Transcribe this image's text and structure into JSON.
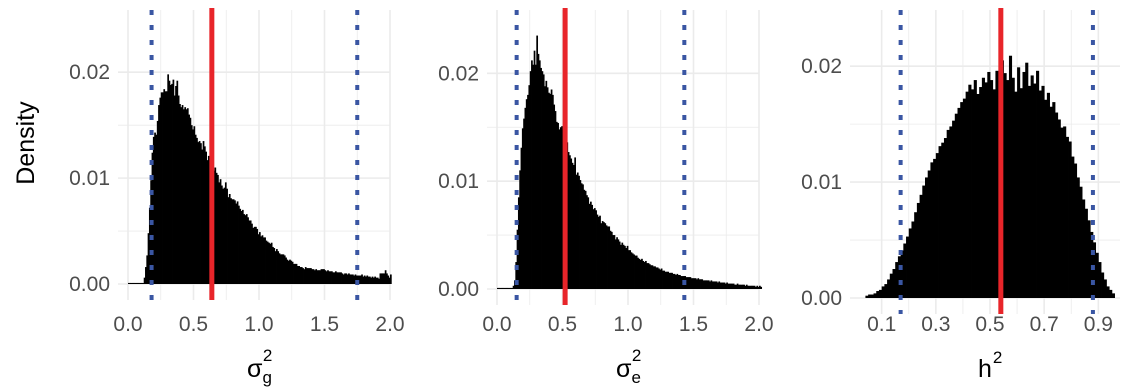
{
  "colors": {
    "bars": "#000000",
    "mean_line": "#e8252a",
    "interval_lines": "#3a56a3",
    "grid": "#ebebeb",
    "tick_text": "#4d4d4d"
  },
  "chart_data": [
    {
      "type": "histogram",
      "xlabel_base": "σ",
      "xlabel_sub": "g",
      "xlabel_sup": "2",
      "ylabel": "Density",
      "xlim": [
        0,
        2.0
      ],
      "ylim": [
        0,
        0.0255
      ],
      "x_ticks": [
        0.0,
        0.5,
        1.0,
        1.5,
        2.0
      ],
      "x_tick_labels": [
        "0.0",
        "0.5",
        "1.0",
        "1.5",
        "2.0"
      ],
      "y_ticks": [
        0.0,
        0.01,
        0.02
      ],
      "y_tick_labels": [
        "0.00",
        "0.01",
        "0.02"
      ],
      "mean_line": 0.64,
      "interval_lines": [
        0.18,
        1.75
      ],
      "bins_start": 0.0,
      "bin_width": 0.01,
      "values": [
        0.0001,
        0.0001,
        0.0001,
        0.0001,
        0.0001,
        0.0001,
        0.0001,
        0.0001,
        0.0001,
        0.0001,
        0.0001,
        0.0001,
        0.0006,
        0.0016,
        0.0027,
        0.0048,
        0.0072,
        0.0098,
        0.0124,
        0.0139,
        0.0143,
        0.0141,
        0.0154,
        0.0169,
        0.0176,
        0.0181,
        0.0181,
        0.0184,
        0.0182,
        0.0182,
        0.0198,
        0.0192,
        0.0188,
        0.0189,
        0.0193,
        0.0178,
        0.0187,
        0.0192,
        0.0178,
        0.017,
        0.0167,
        0.0169,
        0.0165,
        0.0167,
        0.0165,
        0.0166,
        0.016,
        0.0157,
        0.015,
        0.0146,
        0.0149,
        0.0141,
        0.0138,
        0.0134,
        0.0135,
        0.0133,
        0.0127,
        0.0135,
        0.013,
        0.0125,
        0.0117,
        0.0121,
        0.0111,
        0.0112,
        0.0114,
        0.0107,
        0.011,
        0.0105,
        0.0103,
        0.0096,
        0.0099,
        0.0093,
        0.009,
        0.0091,
        0.0096,
        0.009,
        0.0082,
        0.0085,
        0.0081,
        0.008,
        0.008,
        0.0079,
        0.0076,
        0.0078,
        0.0074,
        0.0071,
        0.0069,
        0.007,
        0.0066,
        0.0065,
        0.0066,
        0.0063,
        0.006,
        0.006,
        0.0057,
        0.0053,
        0.0054,
        0.0054,
        0.0052,
        0.0047,
        0.0049,
        0.0045,
        0.0046,
        0.0044,
        0.0044,
        0.0041,
        0.004,
        0.0039,
        0.0038,
        0.0039,
        0.0035,
        0.0034,
        0.0031,
        0.0033,
        0.0031,
        0.0029,
        0.0028,
        0.0028,
        0.0028,
        0.0027,
        0.0025,
        0.0023,
        0.0022,
        0.0023,
        0.0022,
        0.0021,
        0.0019,
        0.0019,
        0.0019,
        0.0017,
        0.0017,
        0.0016,
        0.0016,
        0.0015,
        0.0014,
        0.0016,
        0.0015,
        0.0015,
        0.0015,
        0.0015,
        0.0014,
        0.0014,
        0.0013,
        0.0014,
        0.0013,
        0.0013,
        0.0013,
        0.0014,
        0.0014,
        0.0014,
        0.0013,
        0.0012,
        0.0013,
        0.0012,
        0.0012,
        0.0012,
        0.0011,
        0.0011,
        0.0012,
        0.0011,
        0.0011,
        0.0011,
        0.0011,
        0.001,
        0.0009,
        0.001,
        0.001,
        0.0009,
        0.001,
        0.0009,
        0.0009,
        0.0009,
        0.0008,
        0.0009,
        0.0008,
        0.0008,
        0.0008,
        0.0008,
        0.0009,
        0.0007,
        0.0008,
        0.0007,
        0.0008,
        0.0007,
        0.0007,
        0.0006,
        0.0007,
        0.0006,
        0.0007,
        0.0006,
        0.0006,
        0.0005,
        0.001,
        0.001,
        0.001,
        0.001,
        0.0013,
        0.001,
        0.0008,
        0.0006,
        0.0009
      ]
    },
    {
      "type": "histogram",
      "xlabel_base": "σ",
      "xlabel_sub": "e",
      "xlabel_sup": "2",
      "ylabel": "",
      "xlim": [
        0,
        2.0
      ],
      "ylim": [
        0,
        0.0255
      ],
      "x_ticks": [
        0.0,
        0.5,
        1.0,
        1.5,
        2.0
      ],
      "x_tick_labels": [
        "0.0",
        "0.5",
        "1.0",
        "1.5",
        "2.0"
      ],
      "y_ticks": [
        0.0,
        0.01,
        0.02
      ],
      "y_tick_labels": [
        "0.00",
        "0.01",
        "0.02"
      ],
      "mean_line": 0.52,
      "interval_lines": [
        0.15,
        1.43
      ],
      "bins_start": 0.0,
      "bin_width": 0.01,
      "values": [
        0.0001,
        0.0001,
        0.0001,
        0.0001,
        0.0001,
        0.0001,
        0.0001,
        0.0001,
        0.0001,
        0.0001,
        0.0001,
        0.0001,
        0.0003,
        0.0008,
        0.0025,
        0.0055,
        0.0085,
        0.011,
        0.0131,
        0.0149,
        0.0158,
        0.0168,
        0.0176,
        0.018,
        0.0189,
        0.0202,
        0.0212,
        0.0208,
        0.0221,
        0.0208,
        0.0235,
        0.0218,
        0.0212,
        0.0205,
        0.0202,
        0.0199,
        0.0188,
        0.0193,
        0.0187,
        0.0182,
        0.0181,
        0.0185,
        0.018,
        0.0171,
        0.0165,
        0.0155,
        0.0154,
        0.0148,
        0.015,
        0.0151,
        0.0148,
        0.014,
        0.0144,
        0.0136,
        0.0127,
        0.0124,
        0.0121,
        0.0117,
        0.0115,
        0.0122,
        0.0106,
        0.0108,
        0.0105,
        0.0101,
        0.0098,
        0.0097,
        0.0092,
        0.0091,
        0.0087,
        0.0085,
        0.0079,
        0.0081,
        0.0078,
        0.0074,
        0.0075,
        0.0073,
        0.0069,
        0.0067,
        0.0068,
        0.0061,
        0.0063,
        0.0062,
        0.0061,
        0.0059,
        0.0058,
        0.0058,
        0.0054,
        0.0053,
        0.005,
        0.005,
        0.0046,
        0.0048,
        0.0046,
        0.0044,
        0.0041,
        0.0043,
        0.0041,
        0.004,
        0.0038,
        0.004,
        0.0036,
        0.0036,
        0.0034,
        0.0033,
        0.0032,
        0.0031,
        0.0031,
        0.0029,
        0.0028,
        0.0027,
        0.0028,
        0.0026,
        0.0025,
        0.0026,
        0.0024,
        0.0024,
        0.0023,
        0.0022,
        0.0022,
        0.0021,
        0.0021,
        0.002,
        0.002,
        0.0019,
        0.0018,
        0.0019,
        0.0017,
        0.0017,
        0.0016,
        0.0016,
        0.0016,
        0.0015,
        0.0015,
        0.0015,
        0.0014,
        0.0014,
        0.0013,
        0.0014,
        0.0013,
        0.0013,
        0.0012,
        0.0012,
        0.0012,
        0.0012,
        0.0011,
        0.0011,
        0.0011,
        0.0011,
        0.001,
        0.001,
        0.001,
        0.001,
        0.0009,
        0.001,
        0.0009,
        0.0009,
        0.0009,
        0.0008,
        0.0008,
        0.0008,
        0.0008,
        0.0008,
        0.0007,
        0.0008,
        0.0007,
        0.0007,
        0.0007,
        0.0007,
        0.0006,
        0.0007,
        0.0006,
        0.0006,
        0.0006,
        0.0006,
        0.0005,
        0.0006,
        0.0005,
        0.0005,
        0.0005,
        0.0005,
        0.0005,
        0.0004,
        0.0004,
        0.0005,
        0.0004,
        0.0004,
        0.0004,
        0.0004,
        0.0004,
        0.0003,
        0.0004,
        0.0003,
        0.0003,
        0.0003,
        0.0003,
        0.0003,
        0.0003,
        0.0002,
        0.0003,
        0.0002,
        0.0003,
        0.0002
      ]
    },
    {
      "type": "histogram",
      "xlabel_base": "h",
      "xlabel_sub": "",
      "xlabel_sup": "2",
      "ylabel": "",
      "xlim": [
        0.02,
        0.98
      ],
      "ylim": [
        0,
        0.0245
      ],
      "x_ticks": [
        0.1,
        0.3,
        0.5,
        0.7,
        0.9
      ],
      "x_tick_labels": [
        "0.1",
        "0.3",
        "0.5",
        "0.7",
        "0.9"
      ],
      "y_ticks": [
        0.0,
        0.01,
        0.02
      ],
      "y_tick_labels": [
        "0.00",
        "0.01",
        "0.02"
      ],
      "mean_line": 0.54,
      "interval_lines": [
        0.17,
        0.88
      ],
      "bins_start": 0.04,
      "bin_width": 0.01,
      "values": [
        0.0002,
        0.0003,
        0.0003,
        0.0004,
        0.0006,
        0.0007,
        0.001,
        0.0012,
        0.0016,
        0.0021,
        0.0025,
        0.0031,
        0.0036,
        0.0041,
        0.0047,
        0.0053,
        0.006,
        0.0066,
        0.0074,
        0.0082,
        0.0089,
        0.0097,
        0.0104,
        0.011,
        0.0117,
        0.012,
        0.0125,
        0.0131,
        0.0134,
        0.0138,
        0.0145,
        0.0148,
        0.0153,
        0.0159,
        0.0164,
        0.0169,
        0.0172,
        0.0178,
        0.0184,
        0.018,
        0.0188,
        0.0176,
        0.0182,
        0.019,
        0.0186,
        0.0195,
        0.0188,
        0.018,
        0.0196,
        0.0186,
        0.0205,
        0.0194,
        0.0188,
        0.0209,
        0.019,
        0.0178,
        0.0199,
        0.0181,
        0.0195,
        0.0203,
        0.0183,
        0.0192,
        0.0185,
        0.0196,
        0.0179,
        0.0183,
        0.0171,
        0.0177,
        0.0165,
        0.0169,
        0.016,
        0.0154,
        0.0147,
        0.0148,
        0.0139,
        0.0135,
        0.0122,
        0.0116,
        0.0104,
        0.0096,
        0.0085,
        0.0077,
        0.0067,
        0.0057,
        0.0048,
        0.0039,
        0.0031,
        0.0022,
        0.0016,
        0.001,
        0.0007,
        0.0004
      ]
    }
  ]
}
